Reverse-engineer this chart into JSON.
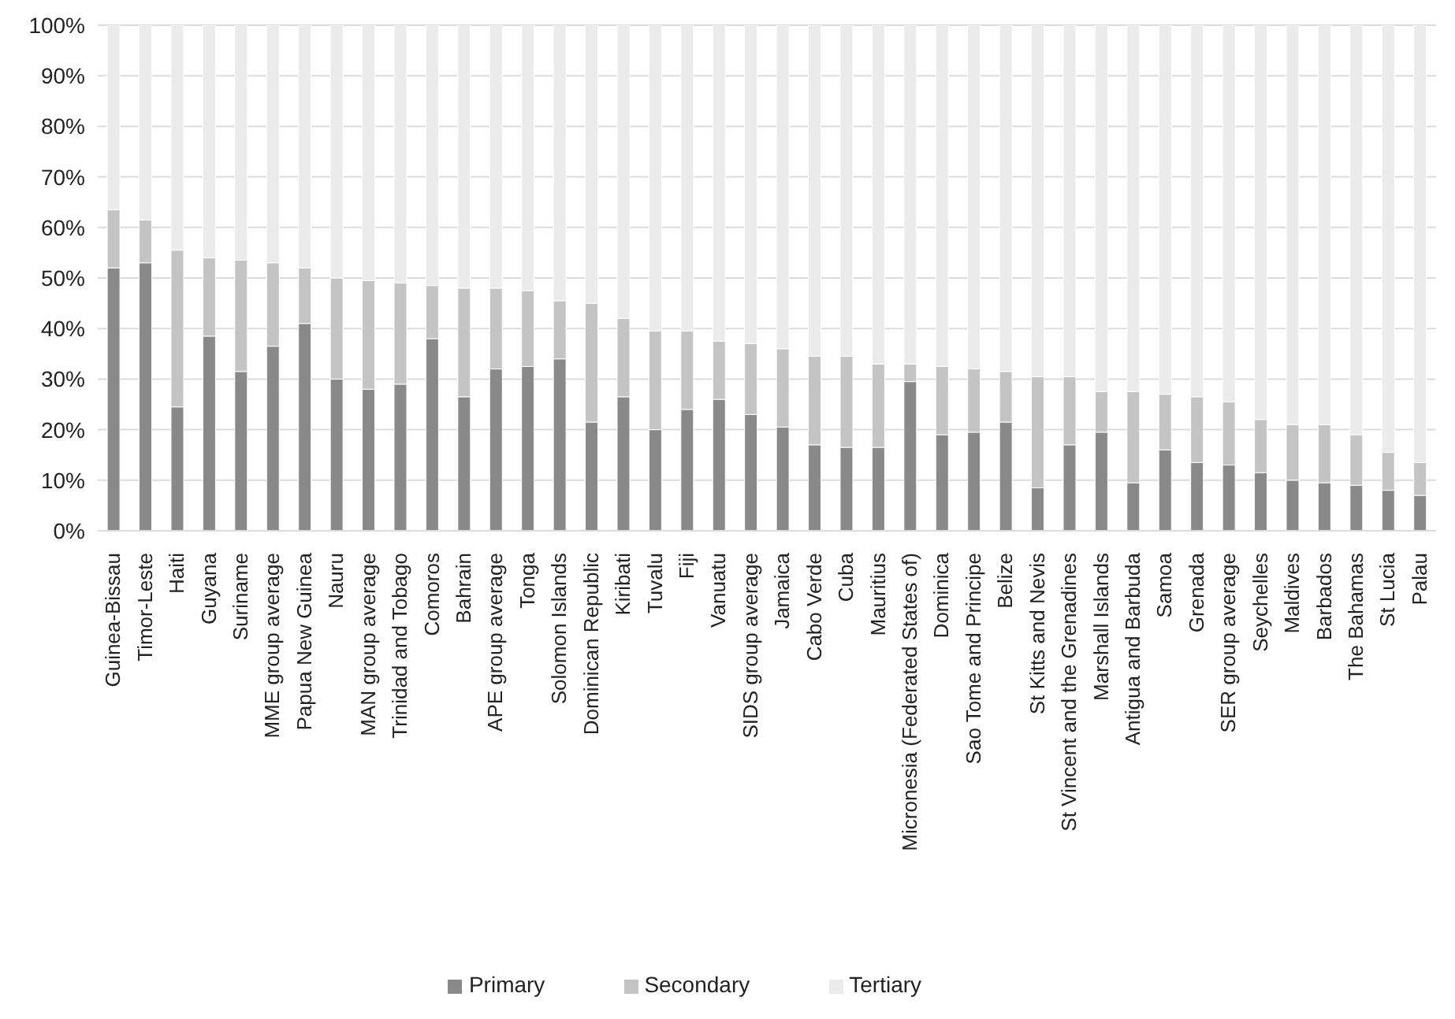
{
  "chart_data": {
    "type": "bar",
    "stacked": true,
    "categories": [
      "Guinea-Bissau",
      "Timor-Leste",
      "Haiti",
      "Guyana",
      "Suriname",
      "MME group average",
      "Papua New Guinea",
      "Nauru",
      "MAN group average",
      "Trinidad and Tobago",
      "Comoros",
      "Bahrain",
      "APE group average",
      "Tonga",
      "Solomon Islands",
      "Dominican Republic",
      "Kiribati",
      "Tuvalu",
      "Fiji",
      "Vanuatu",
      "SIDS group average",
      "Jamaica",
      "Cabo Verde",
      "Cuba",
      "Mauritius",
      "Micronesia (Federated States of)",
      "Dominica",
      "Sao Tome and Principe",
      "Belize",
      "St Kitts and Nevis",
      "St Vincent and the Grenadines",
      "Marshall Islands",
      "Antigua and Barbuda",
      "Samoa",
      "Grenada",
      "SER group average",
      "Seychelles",
      "Maldives",
      "Barbados",
      "The Bahamas",
      "St Lucia",
      "Palau"
    ],
    "series": [
      {
        "name": "Primary",
        "color": "#898989",
        "values": [
          52,
          53,
          24.5,
          38.5,
          31.5,
          36.5,
          41,
          30,
          28,
          29,
          38,
          26.5,
          32,
          32.5,
          34,
          21.5,
          26.5,
          20,
          24,
          26,
          23,
          20.5,
          17,
          16.5,
          16.5,
          29.5,
          19,
          19.5,
          21.5,
          8.5,
          17,
          19.5,
          9.5,
          16,
          13.5,
          13,
          11.5,
          10,
          9.5,
          9,
          8,
          7
        ]
      },
      {
        "name": "Secondary",
        "color": "#c4c4c4",
        "values": [
          11.5,
          8.5,
          31,
          15.5,
          22,
          16.5,
          11,
          20,
          21.5,
          20,
          10.5,
          21.5,
          16,
          15,
          11.5,
          23.5,
          15.5,
          19.5,
          15.5,
          11.5,
          14,
          15.5,
          17.5,
          18,
          16.5,
          3.5,
          13.5,
          12.5,
          10,
          22,
          13.5,
          8,
          18,
          11,
          13,
          12.5,
          10.5,
          11,
          11.5,
          10,
          7.5,
          6.5
        ]
      },
      {
        "name": "Tertiary",
        "color": "#ebebeb",
        "values": [
          36.5,
          38.5,
          44.5,
          46,
          46.5,
          47,
          48,
          50,
          50.5,
          51,
          51.5,
          52,
          52,
          52.5,
          54.5,
          55,
          58,
          60.5,
          60.5,
          62.5,
          63,
          64,
          65.5,
          65.5,
          67,
          67,
          67.5,
          68,
          68.5,
          69.5,
          69.5,
          72.5,
          72.5,
          73,
          73.5,
          74.5,
          78,
          79,
          79,
          81,
          84.5,
          86.5
        ]
      }
    ],
    "ylim": [
      0,
      100
    ],
    "yticks": [
      {
        "value": 0,
        "label": "0%"
      },
      {
        "value": 10,
        "label": "10%"
      },
      {
        "value": 20,
        "label": "20%"
      },
      {
        "value": 30,
        "label": "30%"
      },
      {
        "value": 40,
        "label": "40%"
      },
      {
        "value": 50,
        "label": "50%"
      },
      {
        "value": 60,
        "label": "60%"
      },
      {
        "value": 70,
        "label": "70%"
      },
      {
        "value": 80,
        "label": "80%"
      },
      {
        "value": 90,
        "label": "90%"
      },
      {
        "value": 100,
        "label": "100%"
      }
    ],
    "grid": "y",
    "legend": "bottom"
  }
}
